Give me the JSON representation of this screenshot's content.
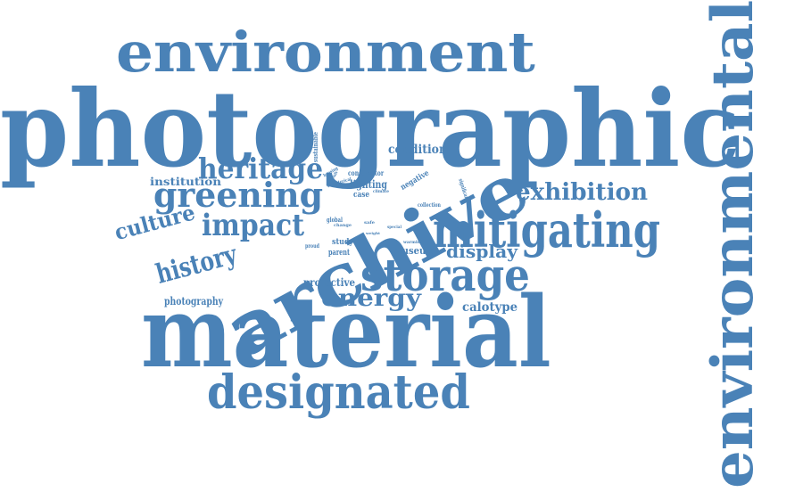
{
  "word_cloud": {
    "color": "#4a82b7",
    "words": [
      "environment",
      "photographic",
      "environmental",
      "archive",
      "material",
      "designated",
      "storage",
      "mitigating",
      "exhibition",
      "heritage",
      "greening",
      "impact",
      "culture",
      "history",
      "energy",
      "display",
      "condition",
      "institution",
      "photography",
      "protective",
      "calotype",
      "museum",
      "lighting",
      "conservator",
      "sustainable",
      "negative",
      "case",
      "study",
      "parent",
      "global",
      "collection",
      "significant",
      "climate",
      "special",
      "proud",
      "warming",
      "change",
      "safe",
      "weight",
      "housing",
      "materials",
      "historical"
    ]
  }
}
